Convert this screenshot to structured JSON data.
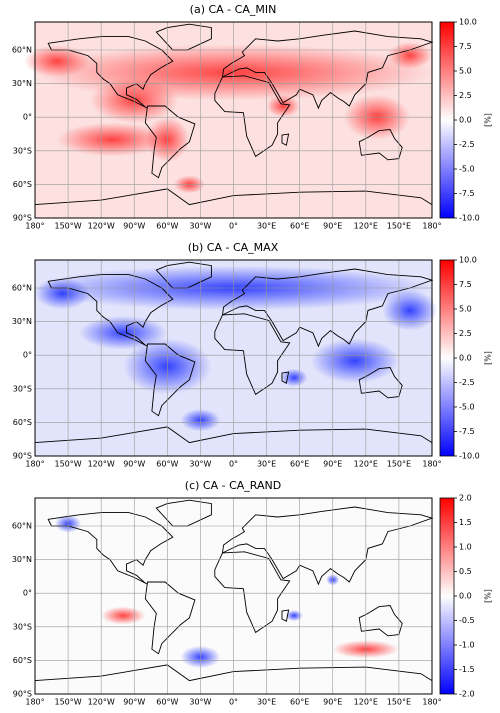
{
  "lonlim": [
    -180,
    180
  ],
  "latlim": [
    -90,
    85
  ],
  "lon_ticks": [
    {
      "value": -180,
      "label": "180°"
    },
    {
      "value": -150,
      "label": "150°W"
    },
    {
      "value": -120,
      "label": "120°W"
    },
    {
      "value": -90,
      "label": "90°W"
    },
    {
      "value": -60,
      "label": "60°W"
    },
    {
      "value": -30,
      "label": "30°W"
    },
    {
      "value": 0,
      "label": "0°"
    },
    {
      "value": 30,
      "label": "30°E"
    },
    {
      "value": 60,
      "label": "60°E"
    },
    {
      "value": 90,
      "label": "90°E"
    },
    {
      "value": 120,
      "label": "120°E"
    },
    {
      "value": 150,
      "label": "150°E"
    },
    {
      "value": 180,
      "label": "180°"
    }
  ],
  "lat_ticks": [
    {
      "value": 60,
      "label": "60°N"
    },
    {
      "value": 30,
      "label": "30°N"
    },
    {
      "value": 0,
      "label": "0°"
    },
    {
      "value": -30,
      "label": "30°S"
    },
    {
      "value": -60,
      "label": "60°S"
    },
    {
      "value": -90,
      "label": "90°S"
    }
  ],
  "panels": [
    {
      "title": "(a) CA - CA_MIN",
      "colorbar": {
        "lim": [
          -10,
          10
        ],
        "label": "[%]",
        "ticks": [
          {
            "value": 10,
            "label": "10.0"
          },
          {
            "value": 7.5,
            "label": "7.5"
          },
          {
            "value": 5,
            "label": "5.0"
          },
          {
            "value": 2.5,
            "label": "2.5"
          },
          {
            "value": 0,
            "label": "0.0"
          },
          {
            "value": -2.5,
            "label": "-2.5"
          },
          {
            "value": -5,
            "label": "-5.0"
          },
          {
            "value": -7.5,
            "label": "-7.5"
          },
          {
            "value": -10,
            "label": "-10.0"
          }
        ]
      }
    },
    {
      "title": "(b) CA - CA_MAX",
      "colorbar": {
        "lim": [
          -10,
          10
        ],
        "label": "[%]",
        "ticks": [
          {
            "value": 10,
            "label": "10.0"
          },
          {
            "value": 7.5,
            "label": "7.5"
          },
          {
            "value": 5,
            "label": "5.0"
          },
          {
            "value": 2.5,
            "label": "2.5"
          },
          {
            "value": 0,
            "label": "0.0"
          },
          {
            "value": -2.5,
            "label": "-2.5"
          },
          {
            "value": -5,
            "label": "-5.0"
          },
          {
            "value": -7.5,
            "label": "-7.5"
          },
          {
            "value": -10,
            "label": "-10.0"
          }
        ]
      }
    },
    {
      "title": "(c) CA - CA_RAND",
      "colorbar": {
        "lim": [
          -2,
          2
        ],
        "label": "[%]",
        "ticks": [
          {
            "value": 2,
            "label": "2.0"
          },
          {
            "value": 1.5,
            "label": "1.5"
          },
          {
            "value": 1,
            "label": "1.0"
          },
          {
            "value": 0.5,
            "label": "0.5"
          },
          {
            "value": 0,
            "label": "0.0"
          },
          {
            "value": -0.5,
            "label": "-0.5"
          },
          {
            "value": -1,
            "label": "-1.0"
          },
          {
            "value": -1.5,
            "label": "-1.5"
          },
          {
            "value": -2,
            "label": "-2.0"
          }
        ]
      }
    }
  ]
}
